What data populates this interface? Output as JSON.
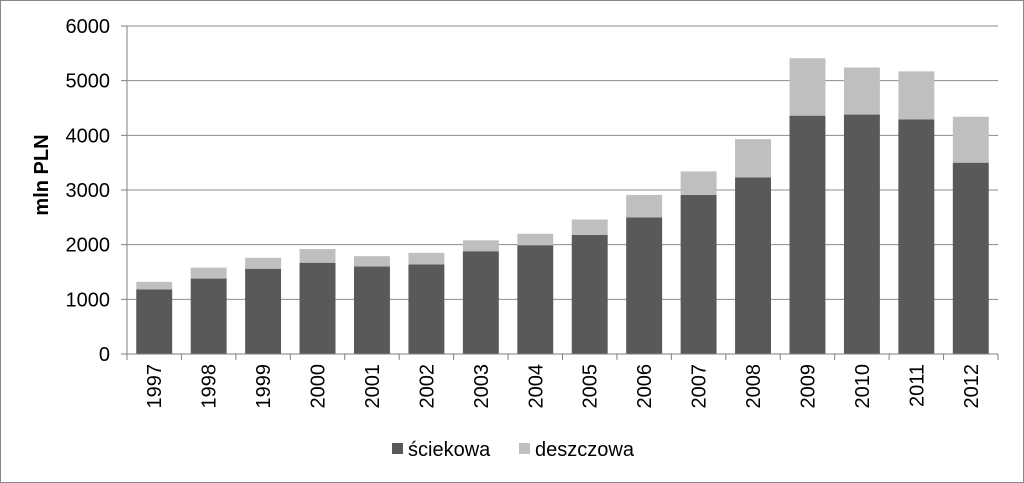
{
  "chart_data": {
    "type": "bar",
    "stacked": true,
    "categories": [
      "1997",
      "1998",
      "1999",
      "2000",
      "2001",
      "2002",
      "2003",
      "2004",
      "2005",
      "2006",
      "2007",
      "2008",
      "2009",
      "2010",
      "2011",
      "2012"
    ],
    "series": [
      {
        "name": "ściekowa",
        "color": "#595959",
        "values": [
          1180,
          1380,
          1560,
          1670,
          1600,
          1640,
          1880,
          1990,
          2180,
          2500,
          2910,
          3230,
          4360,
          4380,
          4290,
          3500
        ]
      },
      {
        "name": "deszczowa",
        "color": "#bfbfbf",
        "values": [
          140,
          200,
          200,
          250,
          190,
          210,
          200,
          210,
          280,
          410,
          430,
          700,
          1050,
          860,
          880,
          840
        ]
      }
    ],
    "title": "",
    "xlabel": "",
    "ylabel": "mln PLN",
    "ylim": [
      0,
      6000
    ],
    "yticks": [
      0,
      1000,
      2000,
      3000,
      4000,
      5000,
      6000
    ],
    "grid": true,
    "legend_position": "bottom"
  }
}
